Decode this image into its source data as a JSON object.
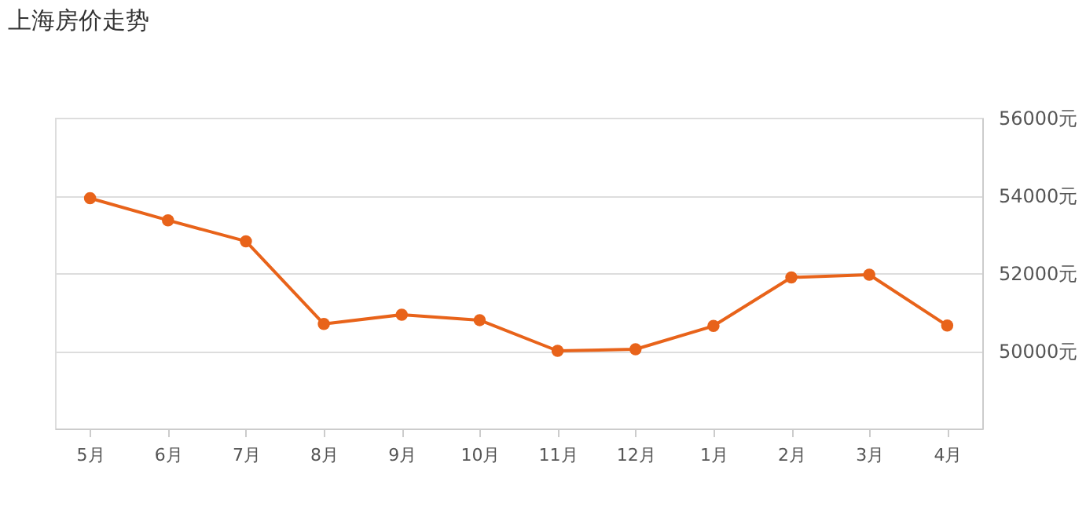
{
  "chart_data": {
    "type": "line",
    "title": "上海房价走势",
    "categories": [
      "5月",
      "6月",
      "7月",
      "8月",
      "9月",
      "10月",
      "11月",
      "12月",
      "1月",
      "2月",
      "3月",
      "4月"
    ],
    "series": [
      {
        "color": "#e8631a",
        "values": [
          53930,
          53360,
          52820,
          50690,
          50930,
          50790,
          50000,
          50040,
          50640,
          51890,
          51960,
          50650
        ]
      }
    ],
    "ylim": [
      48000,
      56000
    ],
    "yticks": [
      {
        "value": 50000,
        "label": "50000元"
      },
      {
        "value": 52000,
        "label": "52000元"
      },
      {
        "value": 54000,
        "label": "54000元"
      },
      {
        "value": 56000,
        "label": "56000元"
      }
    ],
    "grid": "y",
    "marker": "circle",
    "line_style": "solid"
  }
}
